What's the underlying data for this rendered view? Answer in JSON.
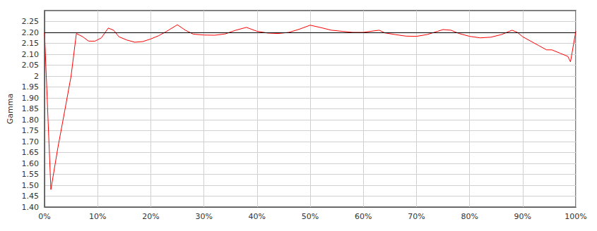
{
  "chart_data": {
    "type": "line",
    "y_label": "Gamma",
    "x": [
      0,
      1.2,
      2.5,
      3.8,
      5,
      6,
      7.2,
      8.3,
      9.5,
      10.7,
      12,
      13,
      14,
      15.5,
      17,
      18.5,
      20,
      21.5,
      23,
      25,
      26.5,
      28,
      30,
      32,
      34,
      36,
      38,
      40,
      42,
      44,
      46,
      48,
      50,
      52,
      54,
      56,
      58,
      60,
      62,
      63,
      64,
      66,
      68,
      70,
      72,
      74,
      75,
      76.5,
      78,
      80,
      82,
      84,
      86,
      88,
      89,
      90,
      91.5,
      93,
      94.5,
      95.5,
      97,
      98.5,
      99,
      100
    ],
    "series": [
      {
        "values": [
          2.2,
          1.48,
          1.67,
          1.84,
          2.0,
          2.195,
          2.18,
          2.16,
          2.16,
          2.175,
          2.22,
          2.21,
          2.18,
          2.165,
          2.155,
          2.158,
          2.17,
          2.185,
          2.205,
          2.235,
          2.21,
          2.192,
          2.188,
          2.187,
          2.193,
          2.21,
          2.223,
          2.205,
          2.197,
          2.195,
          2.2,
          2.215,
          2.233,
          2.222,
          2.21,
          2.205,
          2.2,
          2.2,
          2.207,
          2.21,
          2.198,
          2.19,
          2.183,
          2.182,
          2.19,
          2.205,
          2.213,
          2.21,
          2.195,
          2.182,
          2.175,
          2.178,
          2.19,
          2.21,
          2.2,
          2.18,
          2.16,
          2.14,
          2.12,
          2.12,
          2.105,
          2.09,
          2.065,
          2.205
        ],
        "color": "#ff0000"
      }
    ],
    "reference_line": {
      "value": 2.2,
      "color": "#000000"
    },
    "xlim": [
      0,
      100
    ],
    "xticks": [
      {
        "value": 0,
        "label": "0%"
      },
      {
        "value": 10,
        "label": "10%"
      },
      {
        "value": 20,
        "label": "20%"
      },
      {
        "value": 30,
        "label": "30%"
      },
      {
        "value": 40,
        "label": "40%"
      },
      {
        "value": 50,
        "label": "50%"
      },
      {
        "value": 60,
        "label": "60%"
      },
      {
        "value": 70,
        "label": "70%"
      },
      {
        "value": 80,
        "label": "80%"
      },
      {
        "value": 90,
        "label": "90%"
      },
      {
        "value": 100,
        "label": "100%"
      }
    ],
    "ylim": [
      1.4,
      2.3
    ],
    "yticks": [
      {
        "value": 1.4,
        "label": "1.40"
      },
      1.45,
      {
        "value": 1.5,
        "label": "1.50"
      },
      1.55,
      {
        "value": 1.6,
        "label": "1.60"
      },
      1.65,
      {
        "value": 1.7,
        "label": "1.70"
      },
      1.75,
      {
        "value": 1.8,
        "label": "1.80"
      },
      1.85,
      {
        "value": 1.9,
        "label": "1.90"
      },
      1.95,
      2,
      2.05,
      {
        "value": 2.1,
        "label": "2.10"
      },
      2.15,
      {
        "value": 2.2,
        "label": "2.20"
      },
      2.25
    ],
    "grid": true
  }
}
